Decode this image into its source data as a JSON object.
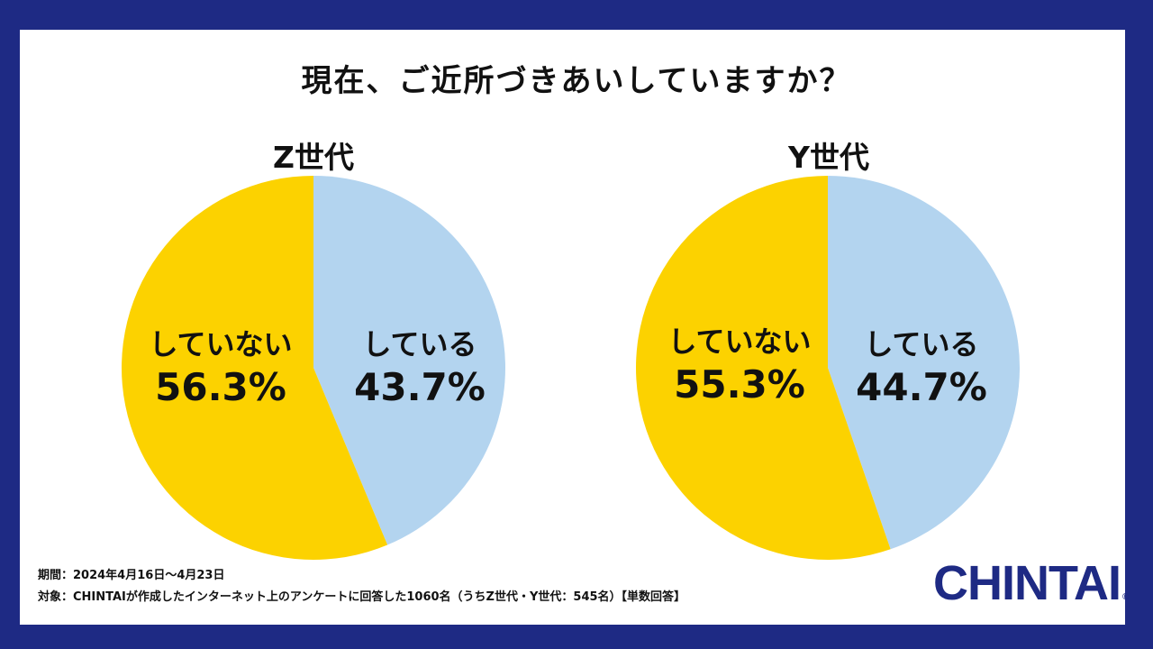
{
  "title": "現在、ご近所づきあいしていますか？",
  "colors": {
    "frame": "#1e2a84",
    "doing": "#b3d4ef",
    "not_doing": "#fcd200"
  },
  "chart_data": [
    {
      "type": "pie",
      "title": "Z世代",
      "slices": [
        {
          "label": "している",
          "value": 43.7,
          "display": "43.7%",
          "color": "#b3d4ef"
        },
        {
          "label": "していない",
          "value": 56.3,
          "display": "56.3%",
          "color": "#fcd200"
        }
      ]
    },
    {
      "type": "pie",
      "title": "Y世代",
      "slices": [
        {
          "label": "している",
          "value": 44.7,
          "display": "44.7%",
          "color": "#b3d4ef"
        },
        {
          "label": "していない",
          "value": 55.3,
          "display": "55.3%",
          "color": "#fcd200"
        }
      ]
    }
  ],
  "footnotes": {
    "period": "期間：2024年4月16日〜4月23日",
    "target": "対象：CHINTAIが作成したインターネット上のアンケートに回答した1060名（うちZ世代・Y世代：545名）【単数回答】"
  },
  "logo": {
    "text": "CHINTAI",
    "mark": "®"
  }
}
